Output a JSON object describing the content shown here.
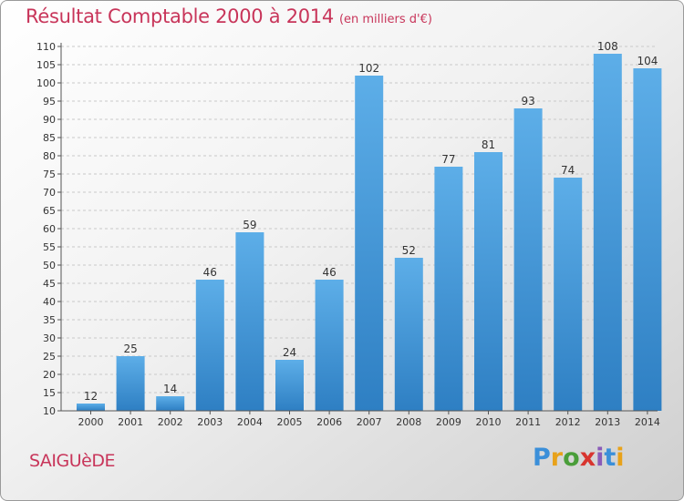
{
  "header": {
    "title": "Résultat Comptable 2000 à 2014",
    "subtitle": "(en milliers d'€)"
  },
  "commune": "SAIGUèDE",
  "logo": {
    "text": "Proxiti",
    "letter_colors": [
      "#3b8fd9",
      "#e8a21a",
      "#4a9e3a",
      "#d8352f",
      "#8a5bb8",
      "#3b8fd9",
      "#e8a21a"
    ]
  },
  "colors": {
    "bar_light": "#5daee8",
    "bar_dark": "#2e7fc3",
    "title": "#c8355a"
  },
  "chart_data": {
    "type": "bar",
    "categories": [
      "2000",
      "2001",
      "2002",
      "2003",
      "2004",
      "2005",
      "2006",
      "2007",
      "2008",
      "2009",
      "2010",
      "2011",
      "2012",
      "2013",
      "2014"
    ],
    "values": [
      12,
      25,
      14,
      46,
      59,
      24,
      46,
      102,
      52,
      77,
      81,
      93,
      74,
      108,
      104
    ],
    "ylim": [
      10,
      110
    ],
    "yticks": [
      10,
      15,
      20,
      25,
      30,
      35,
      40,
      45,
      50,
      55,
      60,
      65,
      70,
      75,
      80,
      85,
      90,
      95,
      100,
      105,
      110
    ],
    "grid": "horizontal dashed",
    "title": "Résultat Comptable 2000 à 2014",
    "xlabel": "",
    "ylabel": ""
  }
}
